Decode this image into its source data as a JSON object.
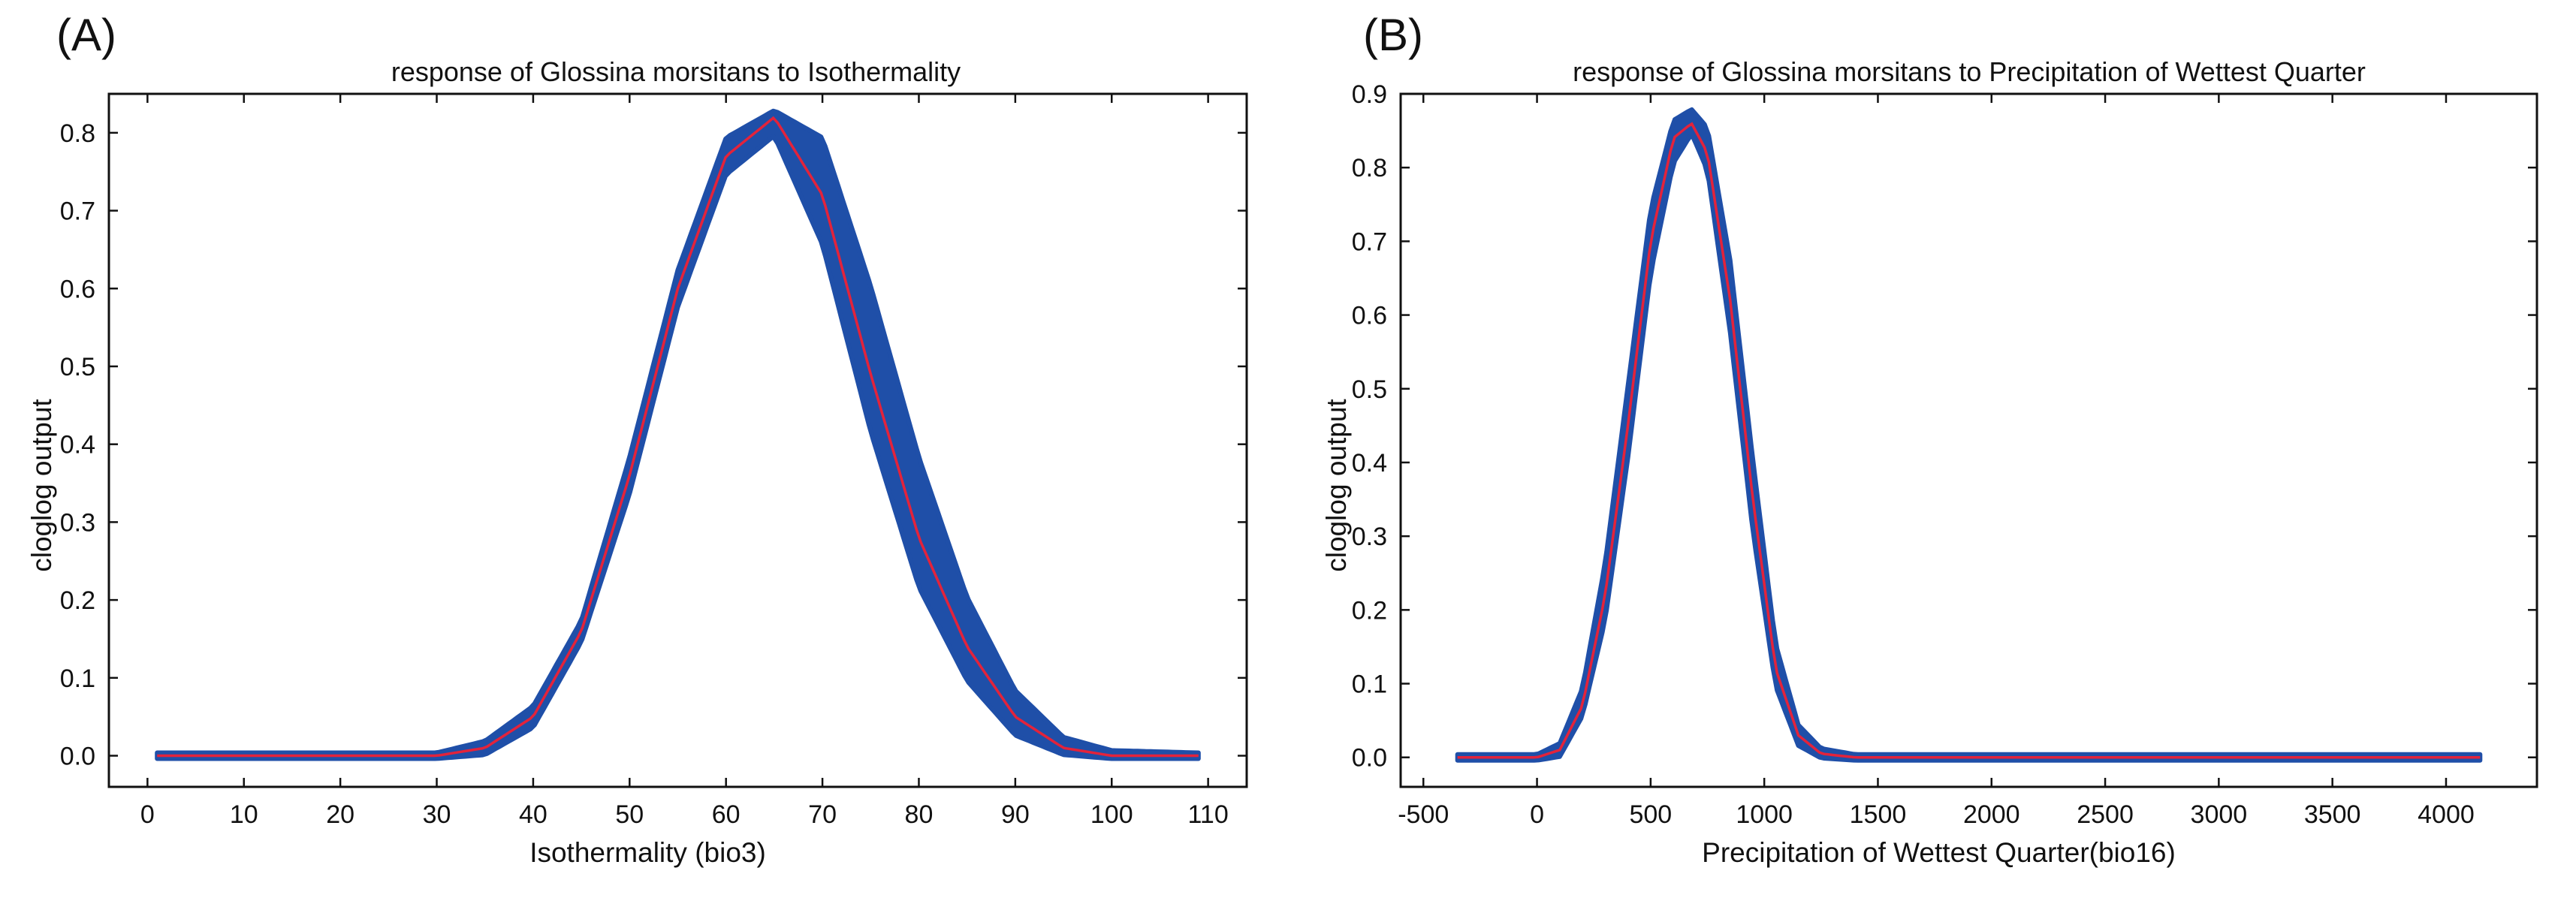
{
  "colors": {
    "band": "#1f4fa8",
    "mean_line": "#e3233b",
    "axis": "#111111"
  },
  "chart_data": [
    {
      "panel_label": "(A)",
      "type": "line",
      "title": "response of Glossina morsitans to Isothermality",
      "xlabel": "Isothermality (bio3)",
      "ylabel": "cloglog output",
      "xlim": [
        -4,
        114
      ],
      "ylim": [
        -0.04,
        0.85
      ],
      "xticks": [
        0,
        10,
        20,
        30,
        40,
        50,
        60,
        70,
        80,
        90,
        100,
        110
      ],
      "xtick_labels": [
        "0",
        "10",
        "20",
        "30",
        "40",
        "50",
        "60",
        "70",
        "80",
        "90",
        "100",
        "110"
      ],
      "yticks": [
        0.0,
        0.1,
        0.2,
        0.3,
        0.4,
        0.5,
        0.6,
        0.7,
        0.8
      ],
      "ytick_labels": [
        "0.0",
        "0.1",
        "0.2",
        "0.3",
        "0.4",
        "0.5",
        "0.6",
        "0.7",
        "0.8"
      ],
      "series": [
        {
          "name": "mean response",
          "x": [
            1,
            10,
            20,
            30,
            35,
            40,
            45,
            50,
            55,
            60,
            65,
            70,
            75,
            80,
            85,
            90,
            95,
            100,
            109
          ],
          "y": [
            0.0,
            0.0,
            0.0,
            0.0,
            0.01,
            0.05,
            0.16,
            0.36,
            0.6,
            0.77,
            0.82,
            0.72,
            0.49,
            0.28,
            0.14,
            0.05,
            0.01,
            0.0,
            0.0
          ]
        },
        {
          "name": "band lower",
          "x": [
            1,
            10,
            20,
            30,
            35,
            40,
            45,
            50,
            55,
            60,
            65,
            70,
            75,
            80,
            85,
            90,
            95,
            100,
            109
          ],
          "y": [
            0.0,
            0.0,
            0.0,
            0.0,
            0.005,
            0.04,
            0.15,
            0.34,
            0.58,
            0.75,
            0.8,
            0.66,
            0.42,
            0.22,
            0.1,
            0.03,
            0.005,
            0.0,
            0.0
          ]
        },
        {
          "name": "band upper",
          "x": [
            1,
            10,
            20,
            30,
            35,
            40,
            45,
            50,
            55,
            60,
            65,
            70,
            75,
            80,
            85,
            90,
            95,
            100,
            109
          ],
          "y": [
            0.0,
            0.0,
            0.0,
            0.0,
            0.015,
            0.06,
            0.17,
            0.38,
            0.62,
            0.79,
            0.825,
            0.79,
            0.6,
            0.38,
            0.2,
            0.08,
            0.02,
            0.003,
            0.0
          ]
        }
      ]
    },
    {
      "panel_label": "(B)",
      "type": "line",
      "title": "response of Glossina morsitans to Precipitation of Wettest Quarter",
      "xlabel": "Precipitation of Wettest Quarter(bio16)",
      "ylabel": "cloglog output",
      "xlim": [
        -600,
        4400
      ],
      "ylim": [
        -0.04,
        0.9
      ],
      "xticks": [
        -500,
        0,
        500,
        1000,
        1500,
        2000,
        2500,
        3000,
        3500,
        4000
      ],
      "xtick_labels": [
        "-500",
        "0",
        "500",
        "1000",
        "1500",
        "2000",
        "2500",
        "3000",
        "3500",
        "4000"
      ],
      "yticks": [
        0.0,
        0.1,
        0.2,
        0.3,
        0.4,
        0.5,
        0.6,
        0.7,
        0.8,
        0.9
      ],
      "ytick_labels": [
        "0.0",
        "0.1",
        "0.2",
        "0.3",
        "0.4",
        "0.5",
        "0.6",
        "0.7",
        "0.8",
        "0.9"
      ],
      "series": [
        {
          "name": "mean response",
          "x": [
            -350,
            0,
            100,
            200,
            300,
            400,
            500,
            600,
            680,
            750,
            850,
            950,
            1050,
            1150,
            1250,
            1400,
            2000,
            4150
          ],
          "y": [
            0.0,
            0.0,
            0.01,
            0.07,
            0.22,
            0.45,
            0.7,
            0.84,
            0.86,
            0.82,
            0.62,
            0.35,
            0.12,
            0.03,
            0.005,
            0.0,
            0.0,
            0.0
          ]
        },
        {
          "name": "band lower",
          "x": [
            -350,
            0,
            100,
            200,
            300,
            400,
            500,
            600,
            680,
            750,
            850,
            950,
            1050,
            1150,
            1250,
            1400,
            2000,
            4150
          ],
          "y": [
            0.0,
            0.0,
            0.005,
            0.06,
            0.19,
            0.41,
            0.66,
            0.81,
            0.85,
            0.8,
            0.58,
            0.31,
            0.1,
            0.02,
            0.003,
            0.0,
            0.0,
            0.0
          ]
        },
        {
          "name": "band upper",
          "x": [
            -350,
            0,
            100,
            200,
            300,
            400,
            500,
            600,
            680,
            750,
            850,
            950,
            1050,
            1150,
            1250,
            1400,
            2000,
            4150
          ],
          "y": [
            0.0,
            0.0,
            0.015,
            0.09,
            0.26,
            0.5,
            0.74,
            0.86,
            0.875,
            0.85,
            0.67,
            0.4,
            0.15,
            0.04,
            0.008,
            0.0,
            0.0,
            0.0
          ]
        }
      ]
    }
  ]
}
